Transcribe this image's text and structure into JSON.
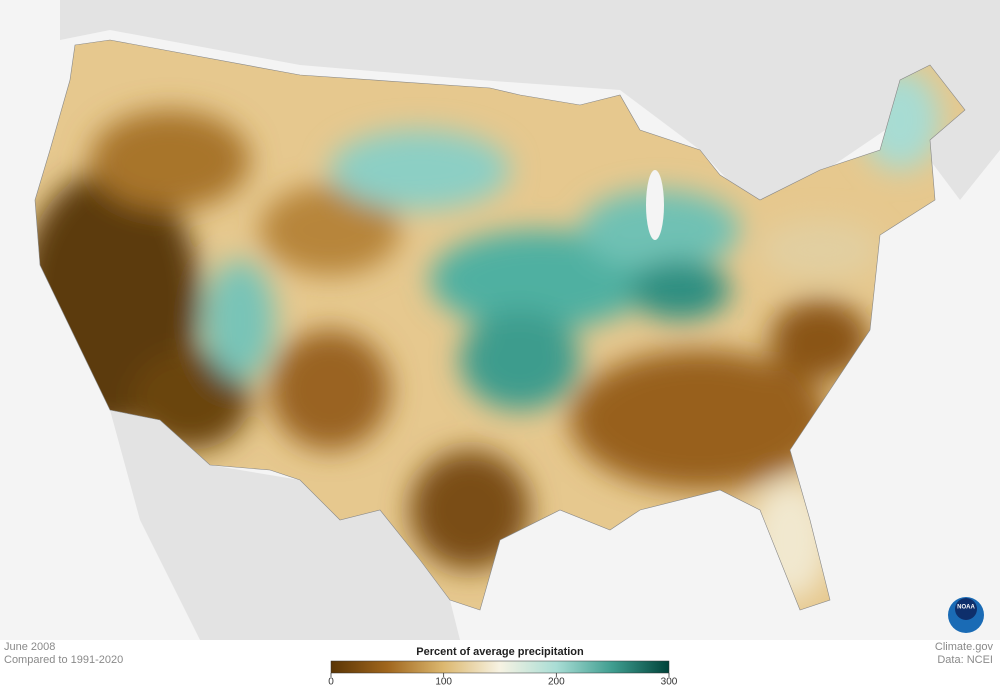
{
  "footer": {
    "date": "June 2008",
    "baseline": "Compared to 1991-2020",
    "credit": "Climate.gov",
    "source": "Data: NCEI"
  },
  "legend": {
    "title": "Percent of average precipitation",
    "range": [
      0,
      300
    ],
    "ticks": [
      0,
      100,
      200,
      300
    ],
    "colors": [
      "#5a3505",
      "#a0661d",
      "#dcb870",
      "#f7f3e3",
      "#a9ddd5",
      "#3f9d8f",
      "#00433a"
    ]
  },
  "logo": {
    "text": "NOAA"
  }
}
